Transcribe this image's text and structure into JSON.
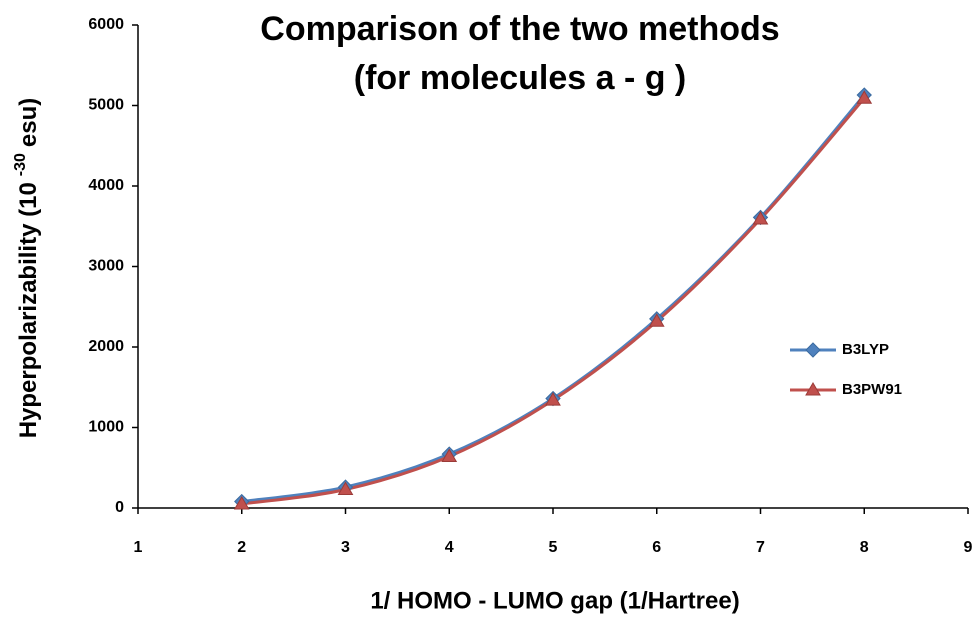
{
  "chart_data": {
    "type": "line",
    "title": [
      "Comparison of the two methods",
      "(for molecules a - g )"
    ],
    "xlabel": "1/ HOMO - LUMO gap (1/Hartree)",
    "ylabel": {
      "text": "Hyperpolarizability (10",
      "superscript": "-30",
      "suffix": "esu)"
    },
    "x": [
      2,
      3,
      4,
      5,
      6,
      7,
      8
    ],
    "series": [
      {
        "name": "B3LYP",
        "color": "#4f81bd",
        "marker": "diamond",
        "values": [
          80,
          260,
          670,
          1360,
          2350,
          3610,
          5130
        ]
      },
      {
        "name": "B3PW91",
        "color": "#c0504d",
        "marker": "triangle",
        "values": [
          50,
          230,
          640,
          1340,
          2320,
          3590,
          5090
        ]
      }
    ],
    "xlim": [
      1,
      9
    ],
    "xticks": [
      1,
      2,
      3,
      4,
      5,
      6,
      7,
      8,
      9
    ],
    "ylim": [
      0,
      6000
    ],
    "yticks": [
      0,
      1000,
      2000,
      3000,
      4000,
      5000,
      6000
    ],
    "grid": false,
    "legend": "right",
    "smooth": true
  }
}
